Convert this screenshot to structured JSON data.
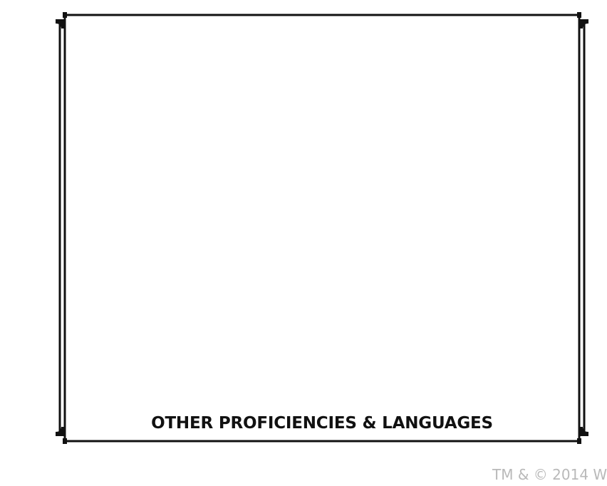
{
  "section": {
    "label": "OTHER PROFICIENCIES & LANGUAGES"
  },
  "footer": {
    "copyright": "TM & © 2014 W"
  }
}
